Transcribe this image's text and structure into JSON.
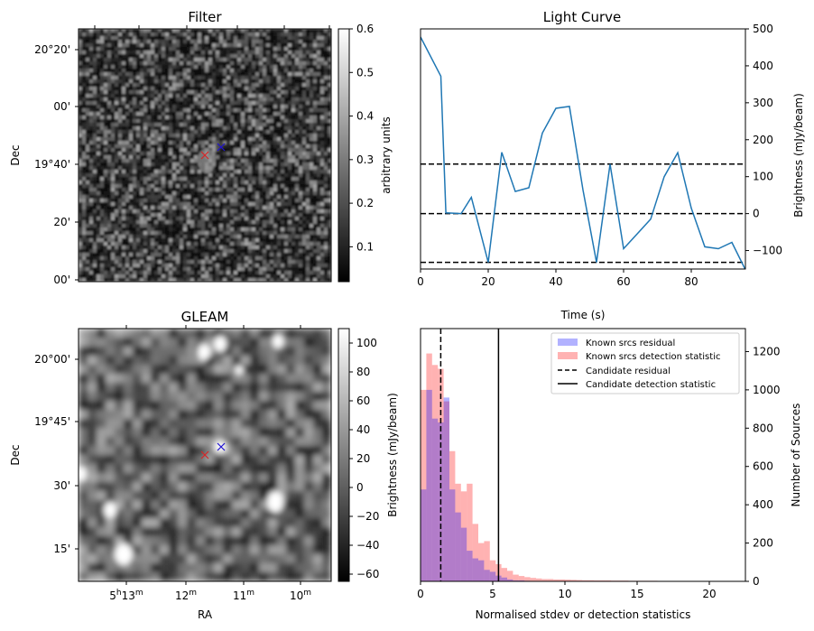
{
  "chart_data": [
    {
      "type": "image",
      "title": "Filter",
      "ylabel": "Dec",
      "y_ticks": [
        "20°20'",
        "00'",
        "19°40'",
        "20'",
        "00'"
      ],
      "colorbar": {
        "label": "arbitrary units",
        "ticks": [
          "0.1",
          "0.2",
          "0.3",
          "0.4",
          "0.5",
          "0.6"
        ],
        "range": [
          0.02,
          0.6
        ],
        "cmap": "gray"
      },
      "markers": [
        {
          "color": "#d62728",
          "symbol": "x"
        },
        {
          "color": "#1f10d0",
          "symbol": "x"
        }
      ]
    },
    {
      "type": "line",
      "title": "Light Curve",
      "xlabel": "Time (s)",
      "ylabel": "Brightness (mJy/beam)",
      "xlim": [
        0,
        96
      ],
      "ylim": [
        -150,
        500
      ],
      "x_ticks": [
        0,
        20,
        40,
        60,
        80
      ],
      "y_ticks": [
        -100,
        0,
        100,
        200,
        300,
        400,
        500
      ],
      "series": [
        {
          "color": "#1f77b4",
          "x": [
            0,
            6,
            7.5,
            12,
            15,
            20,
            24,
            28,
            32,
            36,
            40,
            44,
            48,
            52,
            56,
            60,
            68,
            72,
            76,
            80,
            84,
            88,
            92,
            96
          ],
          "y": [
            478,
            372,
            2,
            0,
            44,
            -132,
            166,
            60,
            70,
            218,
            285,
            290,
            64,
            -132,
            134,
            -95,
            -15,
            100,
            165,
            15,
            -90,
            -95,
            -78,
            -152
          ]
        }
      ],
      "hlines": [
        {
          "y": 134,
          "style": "dashed"
        },
        {
          "y": 0,
          "style": "dashed"
        },
        {
          "y": -132,
          "style": "dashed"
        }
      ]
    },
    {
      "type": "image",
      "title": "GLEAM",
      "xlabel": "RA",
      "ylabel": "Dec",
      "x_ticks": [
        "5h13m",
        "12m",
        "11m",
        "10m"
      ],
      "y_ticks": [
        "20°00'",
        "19°45'",
        "30'",
        "15'"
      ],
      "colorbar": {
        "label": "Brightness (mJy/beam)",
        "ticks": [
          "−60",
          "−40",
          "−20",
          "0",
          "20",
          "40",
          "60",
          "80",
          "100"
        ],
        "range": [
          -65,
          110
        ],
        "cmap": "gray"
      },
      "markers": [
        {
          "color": "#d62728",
          "symbol": "x"
        },
        {
          "color": "#1f10d0",
          "symbol": "x"
        }
      ]
    },
    {
      "type": "histogram",
      "xlabel": "Normalised stdev or detection statistics",
      "ylabel": "Number of Sources",
      "xlim": [
        0,
        22.5
      ],
      "ylim": [
        0,
        1320
      ],
      "x_ticks": [
        0,
        5,
        10,
        15,
        20
      ],
      "y_ticks": [
        0,
        200,
        400,
        600,
        800,
        1000,
        1200
      ],
      "bin_width": 0.4,
      "legend_position": "top-right",
      "series": [
        {
          "name": "Known srcs residual",
          "color": "#0000ff",
          "alpha": 0.3,
          "values": [
            480,
            1000,
            850,
            830,
            960,
            480,
            360,
            280,
            160,
            120,
            110,
            60,
            50,
            30,
            20,
            10,
            5,
            5,
            3,
            2
          ]
        },
        {
          "name": "Known srcs detection statistic",
          "color": "#ff0000",
          "alpha": 0.3,
          "values": [
            1000,
            1190,
            1130,
            1110,
            940,
            680,
            510,
            470,
            510,
            300,
            200,
            210,
            110,
            90,
            70,
            55,
            35,
            28,
            22,
            18,
            15,
            12,
            12,
            10,
            10,
            9,
            8,
            7,
            6,
            6,
            5,
            5,
            5,
            4,
            4,
            4,
            3,
            3,
            3,
            3,
            3,
            2,
            2,
            2,
            2,
            2,
            2,
            2,
            2,
            1,
            1,
            1,
            1,
            1,
            1
          ]
        }
      ],
      "vlines": [
        {
          "name": "Candidate residual",
          "x": 1.4,
          "style": "dashed"
        },
        {
          "name": "Candidate detection statistic",
          "x": 5.4,
          "style": "solid"
        }
      ]
    }
  ]
}
